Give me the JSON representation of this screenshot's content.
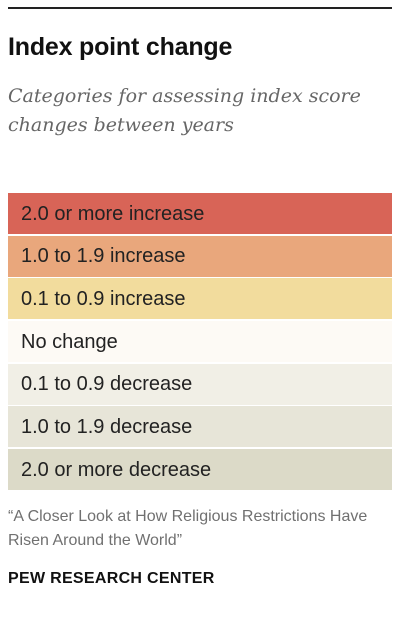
{
  "title": "Index point change",
  "subtitle": "Categories for assessing index score changes between years",
  "legend": [
    {
      "label": "2.0 or more increase",
      "color": "#d86457"
    },
    {
      "label": "1.0 to 1.9 increase",
      "color": "#e9a77c"
    },
    {
      "label": "0.1 to 0.9 increase",
      "color": "#f2dc9d"
    },
    {
      "label": "No change",
      "color": "#fdfaf5"
    },
    {
      "label": "0.1 to 0.9 decrease",
      "color": "#f1efe6"
    },
    {
      "label": "1.0 to 1.9 decrease",
      "color": "#e7e5d8"
    },
    {
      "label": "2.0 or more decrease",
      "color": "#dcdac8"
    }
  ],
  "source": "“A Closer Look at How Religious Restrictions Have Risen Around the World”",
  "brand": "PEW RESEARCH CENTER"
}
